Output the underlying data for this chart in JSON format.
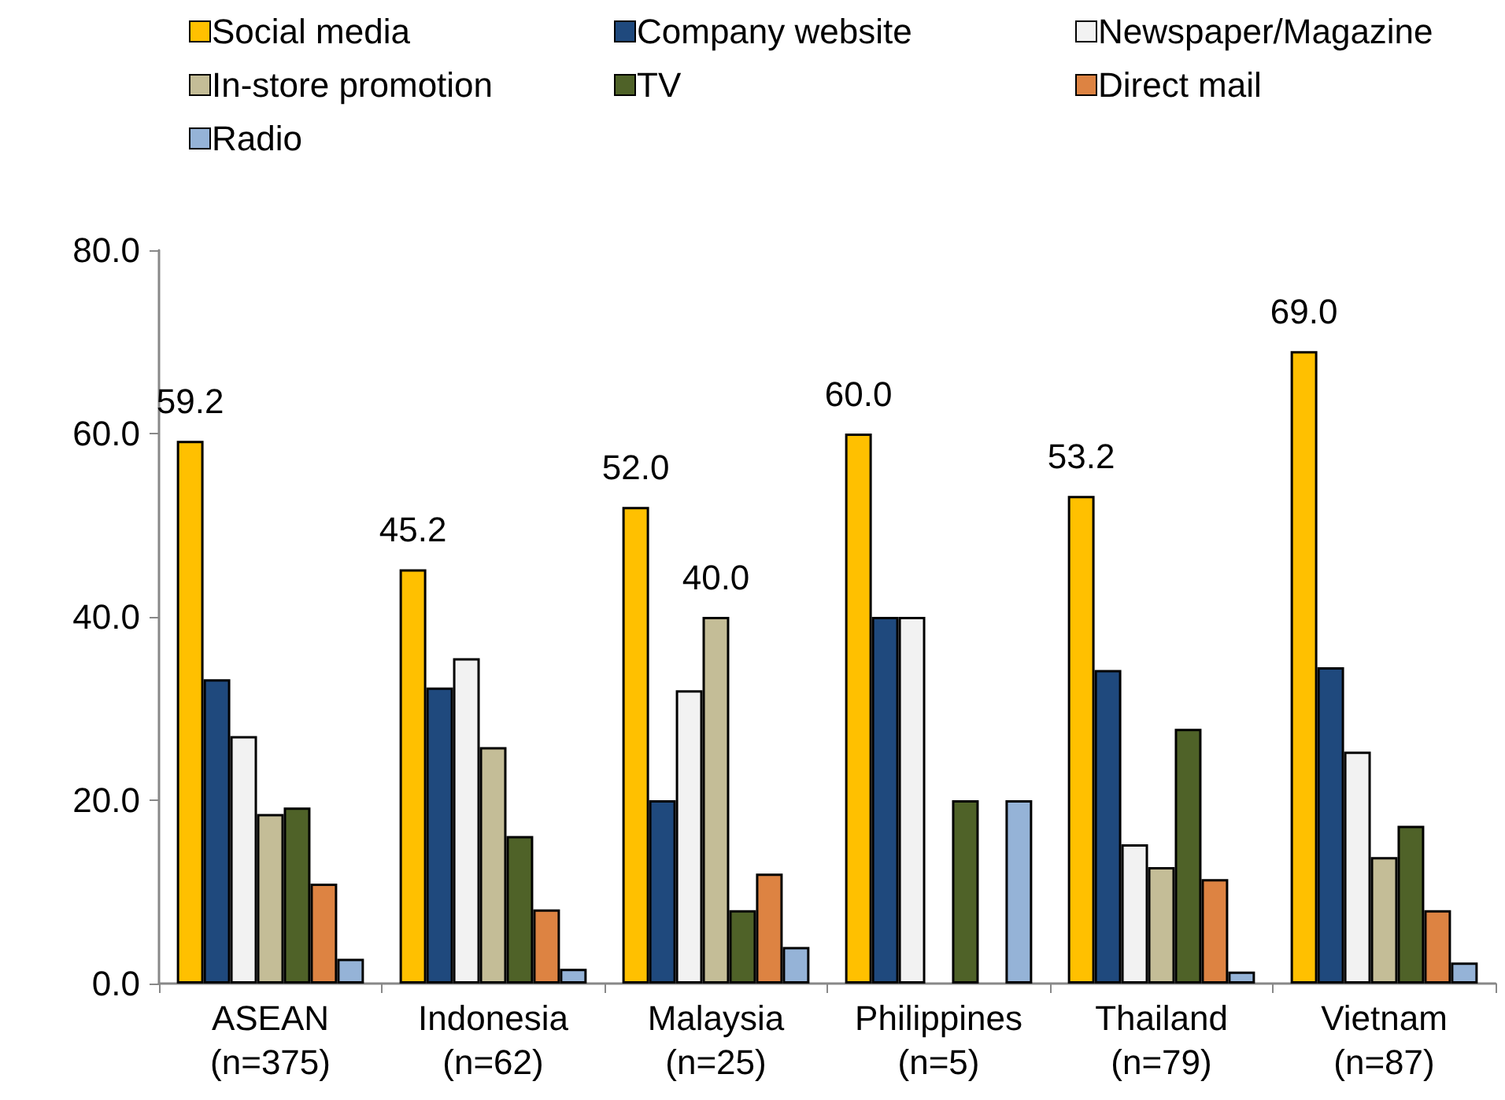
{
  "chart_data": {
    "type": "bar",
    "categories": [
      "ASEAN\n(n=375)",
      "Indonesia\n(n=62)",
      "Malaysia\n(n=25)",
      "Philippines\n(n=5)",
      "Thailand\n(n=79)",
      "Vietnam\n(n=87)"
    ],
    "series": [
      {
        "name": "Social media",
        "color": "#ffc000",
        "values": [
          59.2,
          45.2,
          52.0,
          60.0,
          53.2,
          69.0
        ],
        "value_labels": [
          "59.2",
          "45.2",
          "52.0",
          "60.0",
          "53.2",
          "69.0"
        ]
      },
      {
        "name": "Company website",
        "color": "#1f497d",
        "values": [
          33.2,
          32.3,
          20,
          40,
          34.2,
          34.5
        ]
      },
      {
        "name": "Newspaper/Magazine",
        "color": "#f2f2f2",
        "values": [
          27.0,
          35.5,
          32,
          40,
          15.2,
          25.3
        ]
      },
      {
        "name": "In-store promotion",
        "color": "#c4bd97",
        "values": [
          18.5,
          25.8,
          40.0,
          null,
          12.7,
          13.8
        ],
        "value_labels": [
          null,
          null,
          "40.0",
          null,
          null,
          null
        ]
      },
      {
        "name": "TV",
        "color": "#4f6228",
        "values": [
          19.2,
          16.1,
          8,
          20,
          27.8,
          17.2
        ]
      },
      {
        "name": "Direct mail",
        "color": "#dd8342",
        "values": [
          10.9,
          8.1,
          12,
          null,
          11.4,
          8.0
        ]
      },
      {
        "name": "Radio",
        "color": "#95b3d7",
        "values": [
          2.7,
          1.6,
          4,
          20,
          1.3,
          2.3
        ]
      }
    ],
    "ylim": [
      0,
      80
    ],
    "yticks": [
      {
        "value": 0,
        "label": "0.0"
      },
      {
        "value": 20,
        "label": "20.0"
      },
      {
        "value": 40,
        "label": "40.0"
      },
      {
        "value": 60,
        "label": "60.0"
      },
      {
        "value": 80,
        "label": "80.0"
      }
    ],
    "grid": false,
    "legend": "top"
  }
}
